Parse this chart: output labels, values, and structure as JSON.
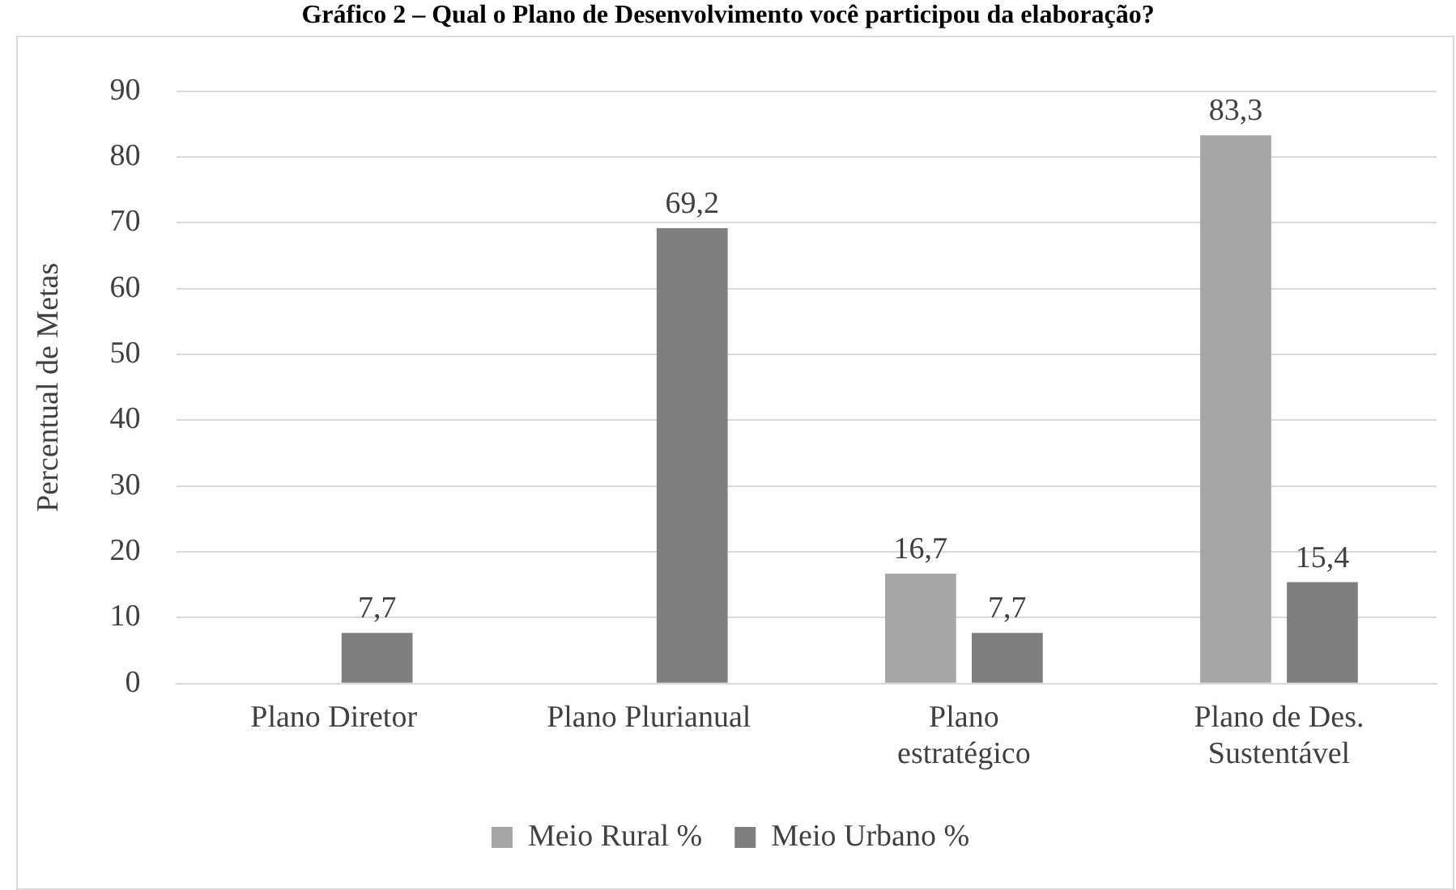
{
  "chart_data": {
    "type": "bar",
    "title": "Gráfico 2 – Qual o Plano de Desenvolvimento você participou da elaboração?",
    "ylabel": "Percentual de Metas",
    "categories": [
      "Plano Diretor",
      "Plano Plurianual",
      "Plano estratégico",
      "Plano de Des. Sustentável"
    ],
    "series": [
      {
        "name": "Meio Rural %",
        "color": "#a6a6a6",
        "values": [
          null,
          null,
          16.7,
          83.3
        ],
        "value_labels": [
          null,
          null,
          "16,7",
          "83,3"
        ]
      },
      {
        "name": "Meio Urbano %",
        "color": "#7f7f7f",
        "values": [
          7.7,
          69.2,
          7.7,
          15.4
        ],
        "value_labels": [
          "7,7",
          "69,2",
          "7,7",
          "15,4"
        ]
      }
    ],
    "ylim": [
      0,
      90
    ],
    "yticks": [
      0,
      10,
      20,
      30,
      40,
      50,
      60,
      70,
      80,
      90
    ],
    "grid": "y",
    "legend": "bottom"
  }
}
